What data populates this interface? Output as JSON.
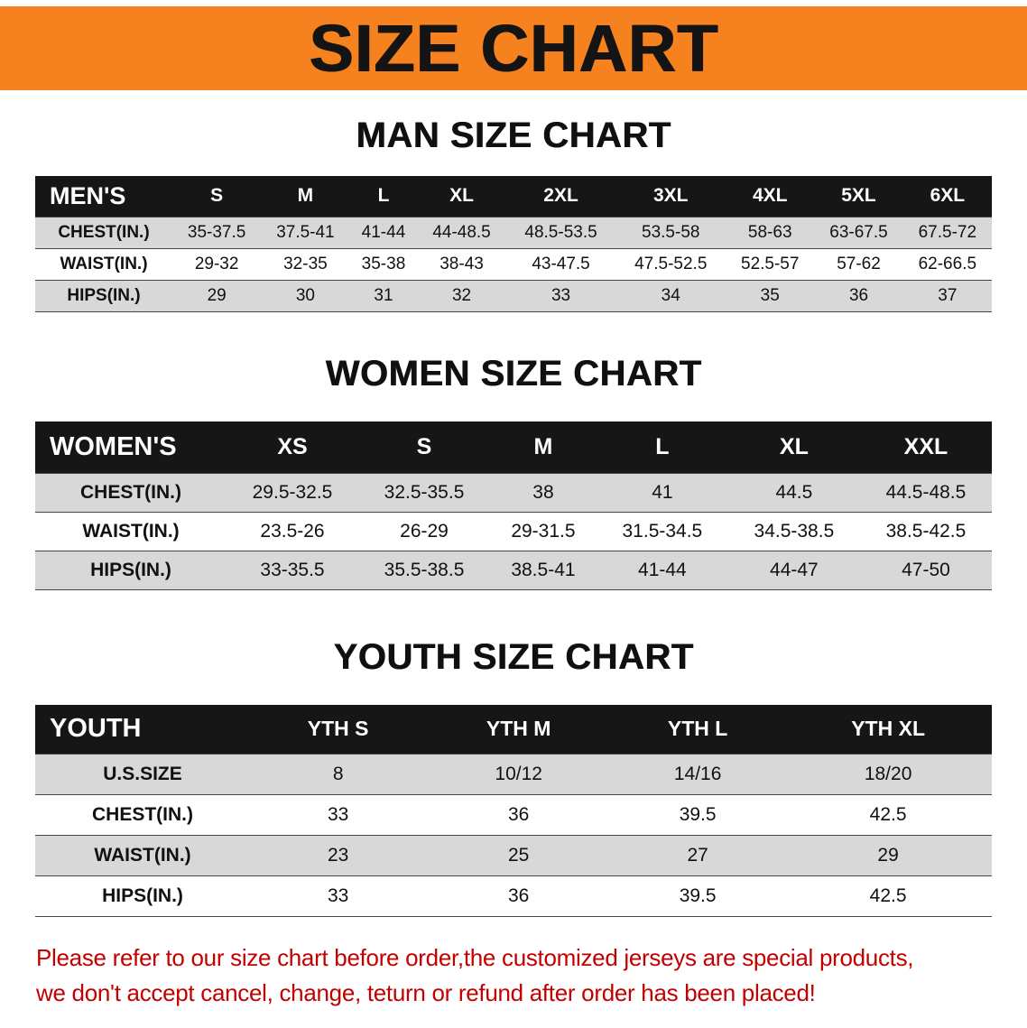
{
  "banner": {
    "title": "SIZE CHART",
    "bg_color": "#F5821F",
    "text_color": "#141414"
  },
  "sections": [
    {
      "heading": "MAN SIZE CHART",
      "table": {
        "header": [
          "MEN'S",
          "S",
          "M",
          "L",
          "XL",
          "2XL",
          "3XL",
          "4XL",
          "5XL",
          "6XL"
        ],
        "rows": [
          {
            "label": "CHEST(IN.)",
            "values": [
              "35-37.5",
              "37.5-41",
              "41-44",
              "44-48.5",
              "48.5-53.5",
              "53.5-58",
              "58-63",
              "63-67.5",
              "67.5-72"
            ]
          },
          {
            "label": "WAIST(IN.)",
            "values": [
              "29-32",
              "32-35",
              "35-38",
              "38-43",
              "43-47.5",
              "47.5-52.5",
              "52.5-57",
              "57-62",
              "62-66.5"
            ]
          },
          {
            "label": "HIPS(IN.)",
            "values": [
              "29",
              "30",
              "31",
              "32",
              "33",
              "34",
              "35",
              "36",
              "37"
            ]
          }
        ]
      }
    },
    {
      "heading": "WOMEN SIZE CHART",
      "table": {
        "header": [
          "WOMEN'S",
          "XS",
          "S",
          "M",
          "L",
          "XL",
          "XXL"
        ],
        "rows": [
          {
            "label": "CHEST(IN.)",
            "values": [
              "29.5-32.5",
              "32.5-35.5",
              "38",
              "41",
              "44.5",
              "44.5-48.5"
            ]
          },
          {
            "label": "WAIST(IN.)",
            "values": [
              "23.5-26",
              "26-29",
              "29-31.5",
              "31.5-34.5",
              "34.5-38.5",
              "38.5-42.5"
            ]
          },
          {
            "label": "HIPS(IN.)",
            "values": [
              "33-35.5",
              "35.5-38.5",
              "38.5-41",
              "41-44",
              "44-47",
              "47-50"
            ]
          }
        ]
      }
    },
    {
      "heading": "YOUTH SIZE CHART",
      "table": {
        "header": [
          "YOUTH",
          "YTH S",
          "YTH M",
          "YTH L",
          "YTH XL"
        ],
        "rows": [
          {
            "label": "U.S.SIZE",
            "values": [
              "8",
              "10/12",
              "14/16",
              "18/20"
            ]
          },
          {
            "label": "CHEST(IN.)",
            "values": [
              "33",
              "36",
              "39.5",
              "42.5"
            ]
          },
          {
            "label": "WAIST(IN.)",
            "values": [
              "23",
              "25",
              "27",
              "29"
            ]
          },
          {
            "label": "HIPS(IN.)",
            "values": [
              "33",
              "36",
              "39.5",
              "42.5"
            ]
          }
        ]
      }
    }
  ],
  "footer": {
    "line1": "Please refer to our size chart before order,the customized jerseys are special products,",
    "line2": "we don't accept cancel, change, teturn or refund after order has been placed!",
    "text_color": "#C30000"
  }
}
